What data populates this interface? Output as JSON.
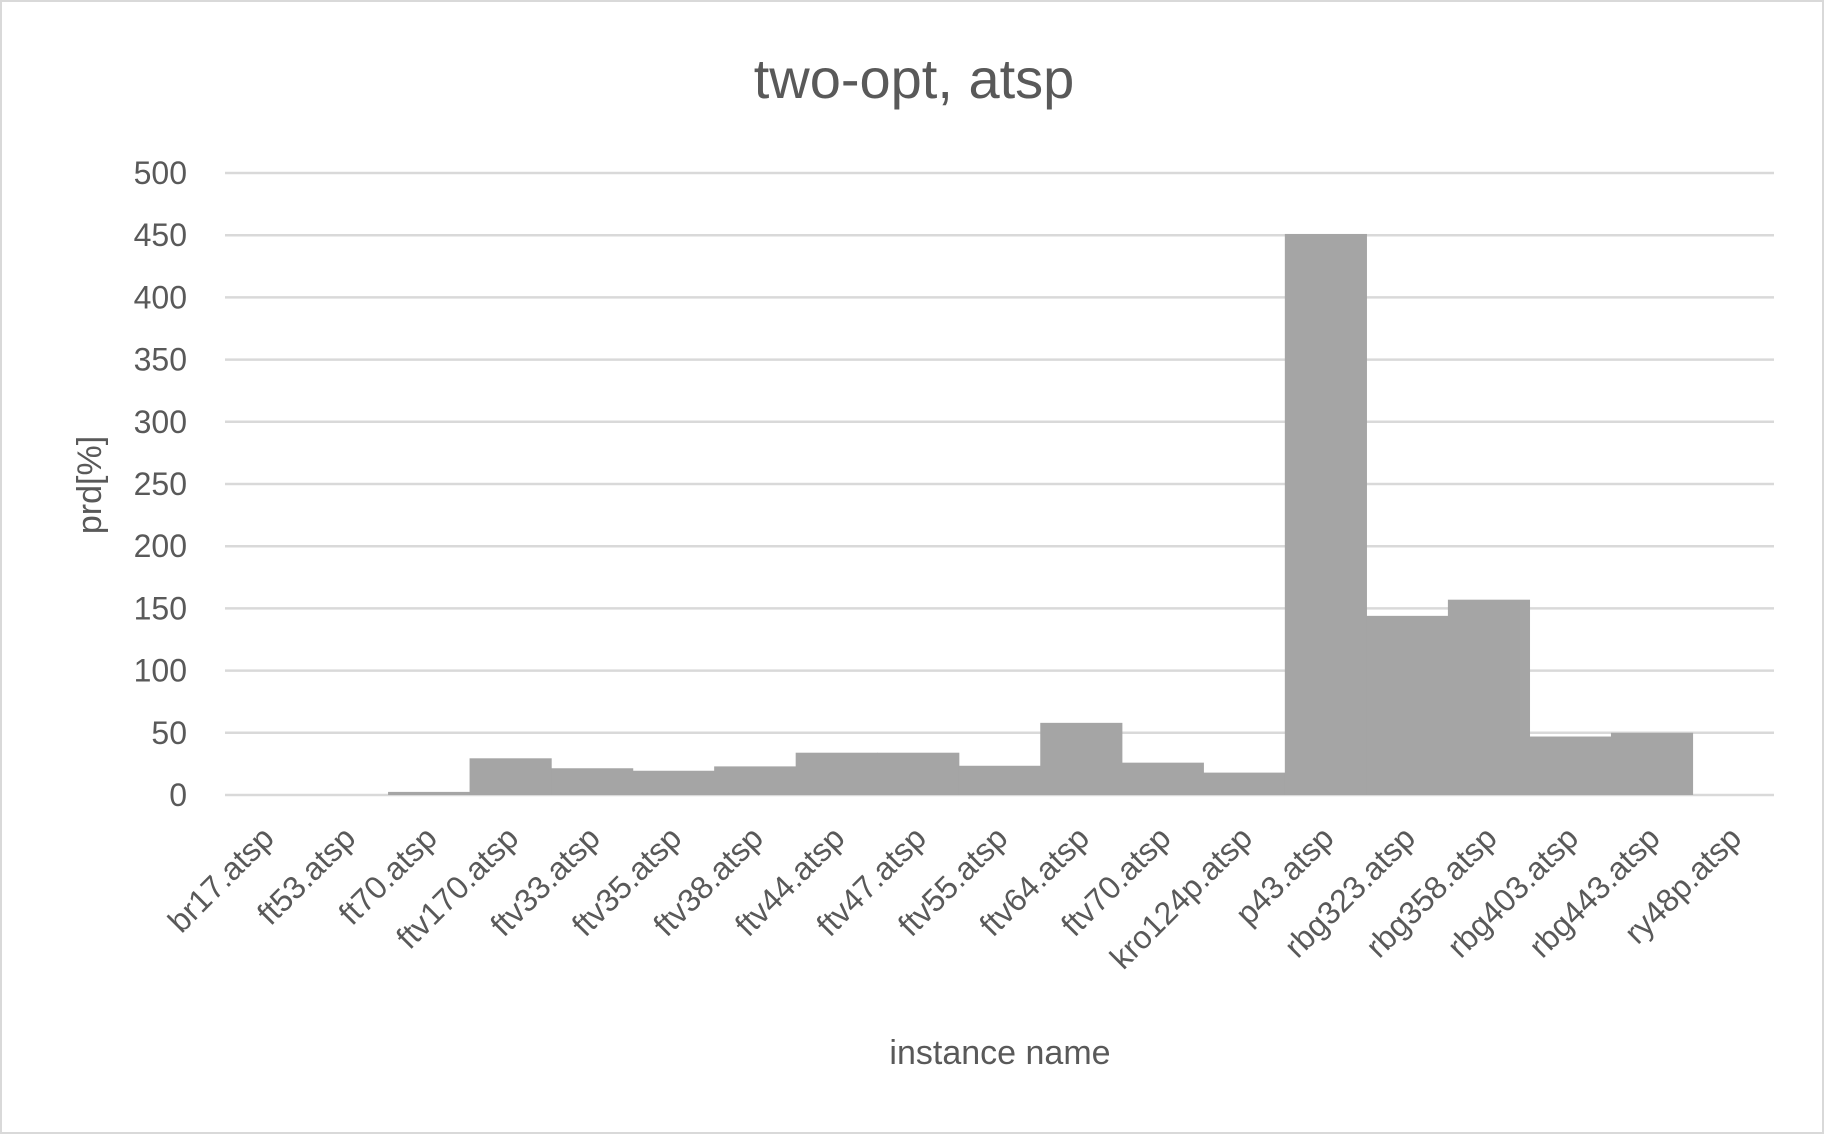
{
  "chart_data": {
    "type": "bar",
    "title": "two-opt, atsp",
    "xlabel": "instance name",
    "ylabel": "prd[%]",
    "ylim": [
      0,
      500
    ],
    "yticks": [
      0,
      50,
      100,
      150,
      200,
      250,
      300,
      350,
      400,
      450,
      500
    ],
    "grid": true,
    "legend": "none",
    "categories": [
      "br17.atsp",
      "ft53.atsp",
      "ft70.atsp",
      "ftv170.atsp",
      "ftv33.atsp",
      "ftv35.atsp",
      "ftv38.atsp",
      "ftv44.atsp",
      "ftv47.atsp",
      "ftv55.atsp",
      "ftv64.atsp",
      "ftv70.atsp",
      "kro124p.atsp",
      "p43.atsp",
      "rbg323.atsp",
      "rbg358.atsp",
      "rbg403.atsp",
      "rbg443.atsp",
      "ry48p.atsp"
    ],
    "values": [
      0,
      0,
      2.5,
      29.5,
      21.5,
      19.5,
      23,
      34,
      34,
      23.5,
      58,
      26,
      18,
      451,
      144,
      157,
      47,
      50,
      0
    ],
    "colors": {
      "bar": "#a5a5a5",
      "grid": "#d9d9d9",
      "text": "#595959"
    }
  }
}
